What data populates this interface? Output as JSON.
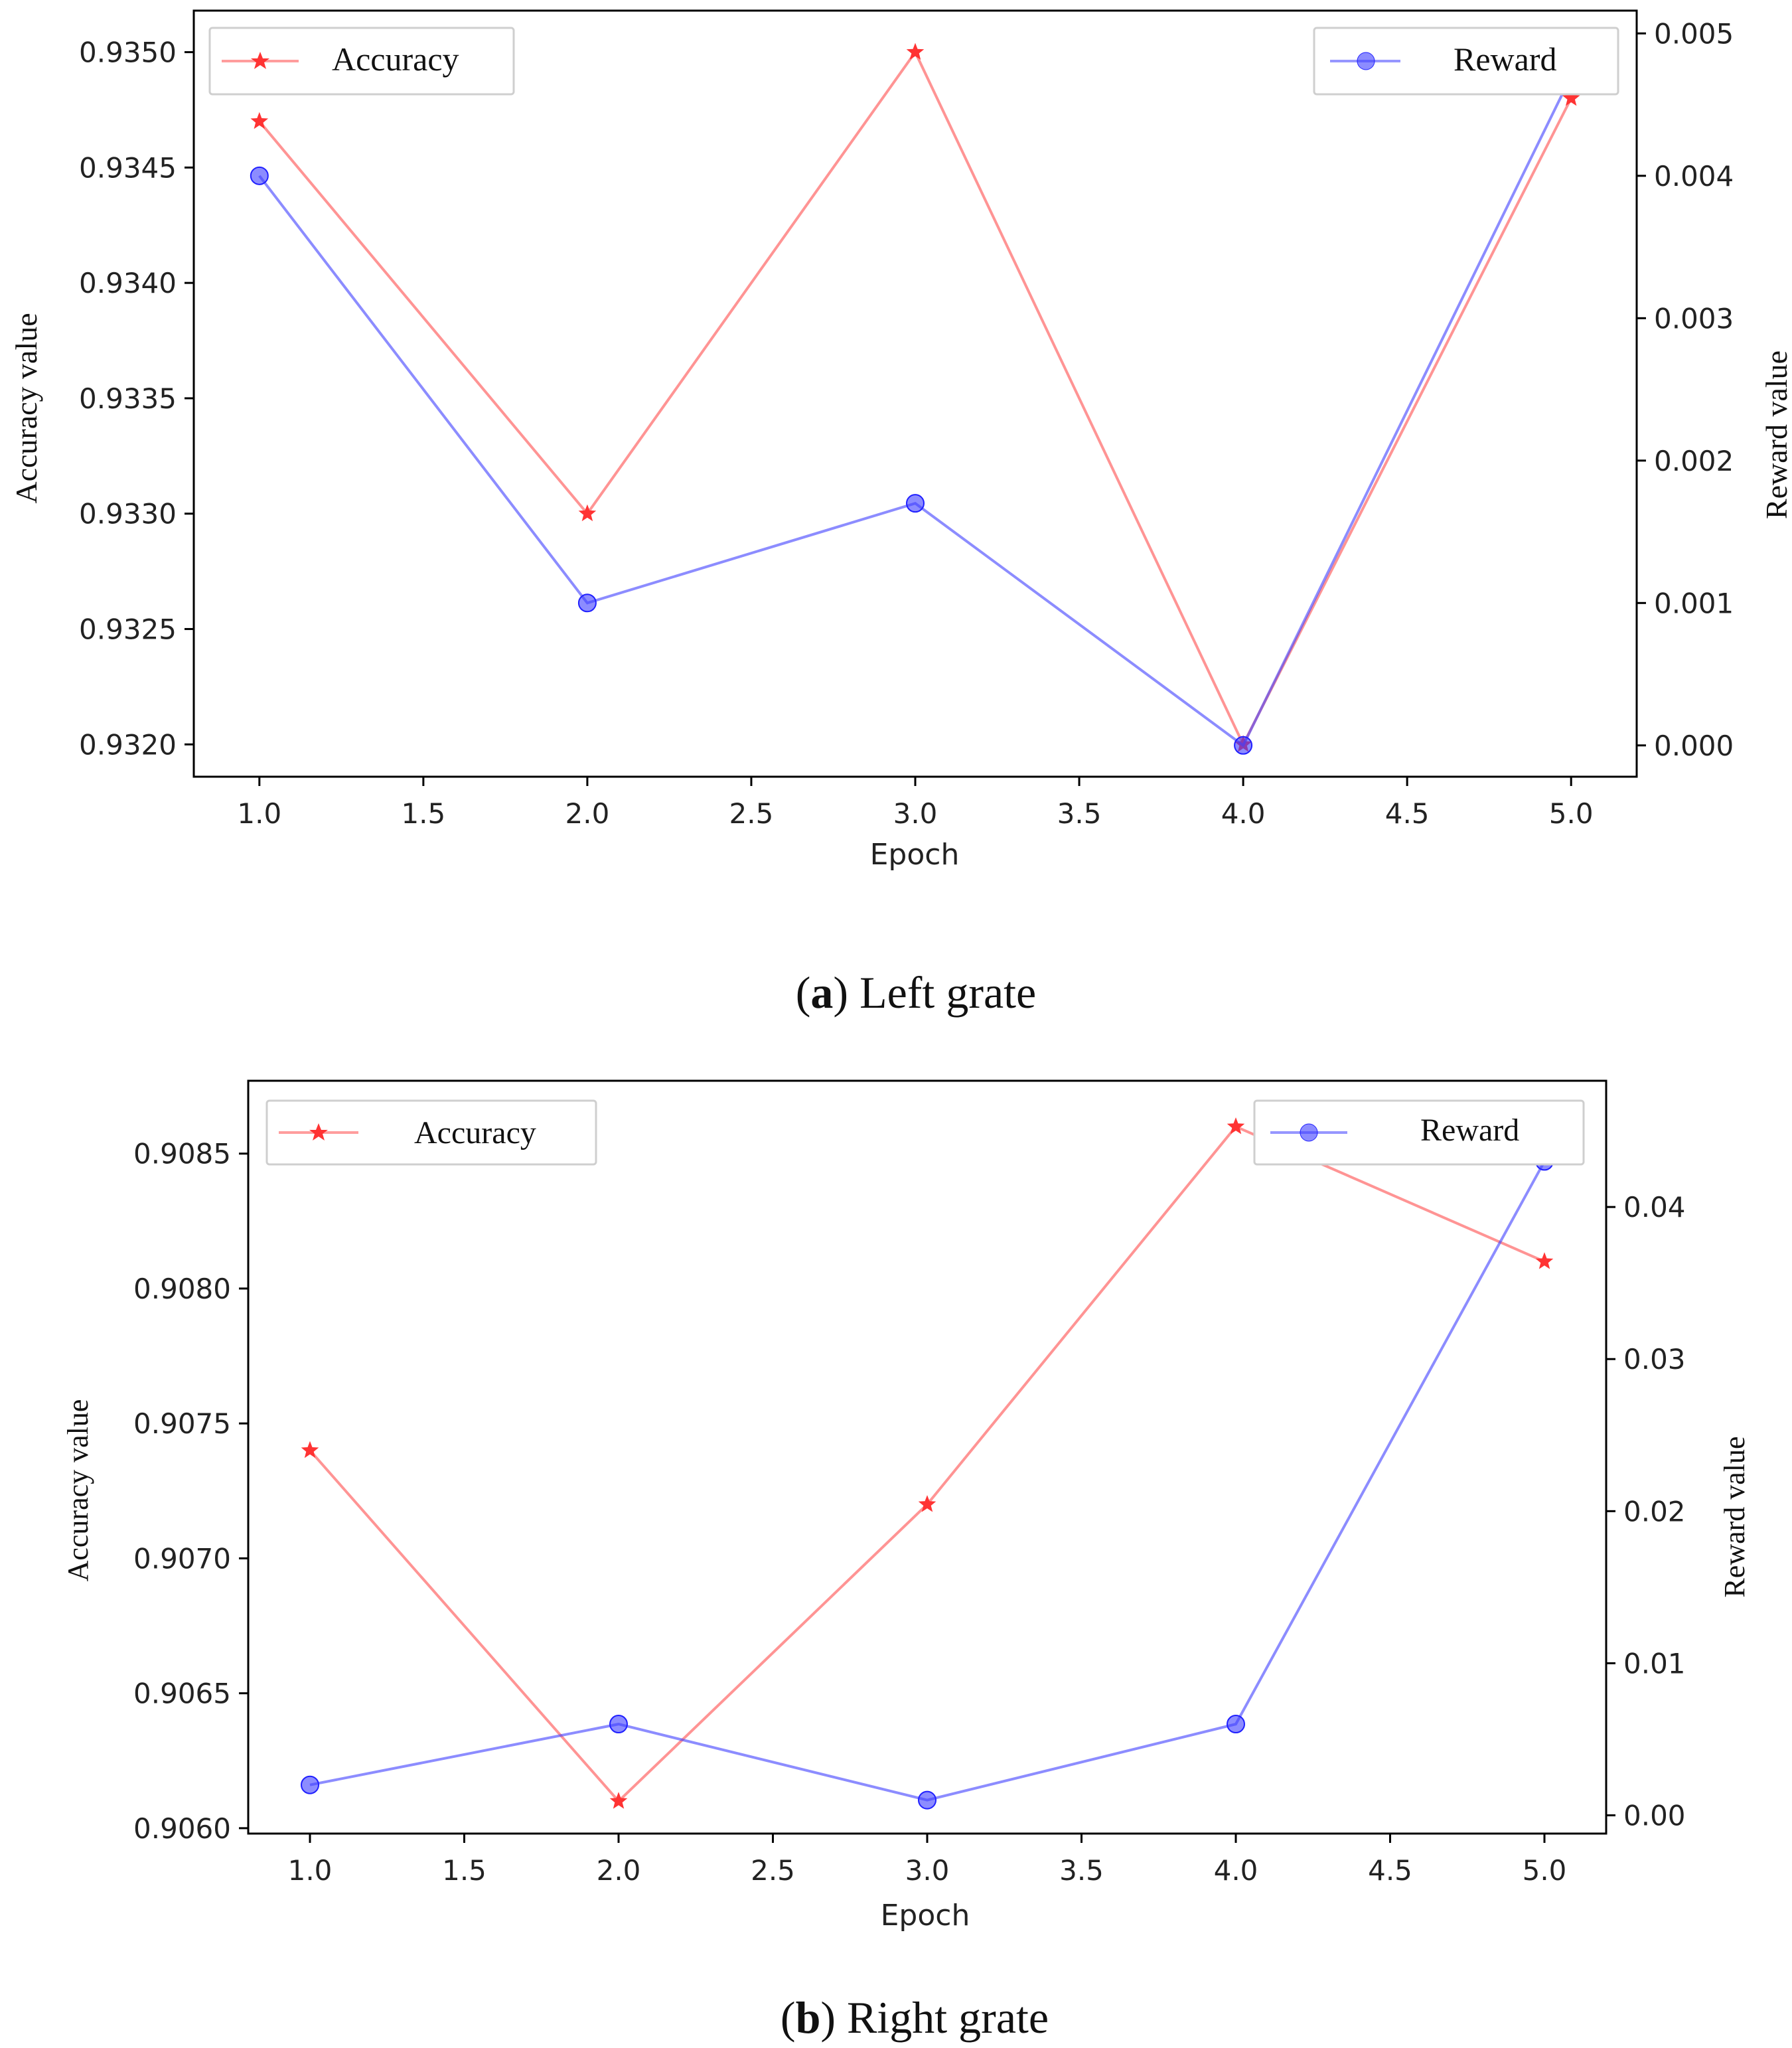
{
  "chart_data": [
    {
      "type": "line",
      "caption_letter": "a",
      "caption_text": ") Left grate",
      "caption_open": "(",
      "xlabel": "Epoch",
      "ylabel": "Accuracy value",
      "ylabel_right": "Reward value",
      "x": [
        1.0,
        2.0,
        3.0,
        4.0,
        5.0
      ],
      "xlim": [
        0.8,
        5.2
      ],
      "xticks": [
        "1.0",
        "1.5",
        "2.0",
        "2.5",
        "3.0",
        "3.5",
        "4.0",
        "4.5",
        "5.0"
      ],
      "ylim": [
        0.93186,
        0.93518
      ],
      "yticks": [
        "0.9320",
        "0.9325",
        "0.9330",
        "0.9335",
        "0.9340",
        "0.9345",
        "0.9350"
      ],
      "y2lim": [
        -0.00022,
        0.00516
      ],
      "y2ticks": [
        "0.000",
        "0.001",
        "0.002",
        "0.003",
        "0.004",
        "0.005"
      ],
      "series": [
        {
          "name": "Accuracy",
          "axis": "left",
          "color": "#ff4d4d",
          "marker": "star",
          "values": [
            0.9347,
            0.933,
            0.935,
            0.932,
            0.9348
          ]
        },
        {
          "name": "Reward",
          "axis": "right",
          "color": "#4040ff",
          "marker": "circle",
          "values": [
            0.004,
            0.001,
            0.0017,
            0.0,
            0.0047
          ]
        }
      ]
    },
    {
      "type": "line",
      "caption_letter": "b",
      "caption_text": ") Right grate",
      "caption_open": "(",
      "xlabel": "Epoch",
      "ylabel": "Accuracy value",
      "ylabel_right": "Reward value",
      "x": [
        1.0,
        2.0,
        3.0,
        4.0,
        5.0
      ],
      "xlim": [
        0.8,
        5.2
      ],
      "xticks": [
        "1.0",
        "1.5",
        "2.0",
        "2.5",
        "3.0",
        "3.5",
        "4.0",
        "4.5",
        "5.0"
      ],
      "ylim": [
        0.90598,
        0.90877
      ],
      "yticks": [
        "0.9060",
        "0.9065",
        "0.9070",
        "0.9075",
        "0.9080",
        "0.9085"
      ],
      "y2lim": [
        -0.0012,
        0.0483
      ],
      "y2ticks": [
        "0.00",
        "0.01",
        "0.02",
        "0.03",
        "0.04"
      ],
      "series": [
        {
          "name": "Accuracy",
          "axis": "left",
          "color": "#ff4d4d",
          "marker": "star",
          "values": [
            0.9074,
            0.9061,
            0.9072,
            0.9086,
            0.9081
          ]
        },
        {
          "name": "Reward",
          "axis": "right",
          "color": "#4040ff",
          "marker": "circle",
          "values": [
            0.002,
            0.006,
            0.001,
            0.006,
            0.043
          ]
        }
      ]
    }
  ]
}
